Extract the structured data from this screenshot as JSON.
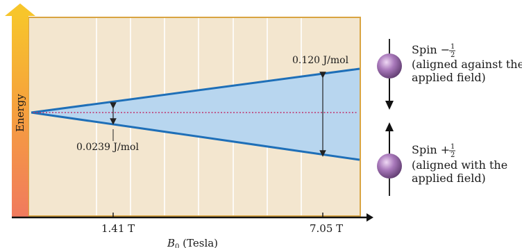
{
  "diagram": {
    "axis_y_label": "Energy",
    "axis_x_label_main": "B",
    "axis_x_label_sub": "0",
    "axis_x_label_unit": " (Tesla)",
    "tick_1": "1.41 T",
    "tick_2": "7.05 T",
    "gap_small": "0.0239 J/mol",
    "gap_large": "0.120 J/mol",
    "spin_down": {
      "prefix": "Spin −",
      "frac_num": "1",
      "frac_den": "2",
      "line2": "(aligned against the",
      "line3": "applied field)"
    },
    "spin_up": {
      "prefix": "Spin +",
      "frac_num": "1",
      "frac_den": "2",
      "line2": "(aligned with the",
      "line3": "applied field)"
    },
    "colors": {
      "panel_bg": "#f3e6cf",
      "panel_border": "#d9a441",
      "wedge_fill": "#b8d6ef",
      "line_blue": "#1e6fb8",
      "midline": "#c0306a",
      "sphere": "#9c6fae"
    }
  }
}
